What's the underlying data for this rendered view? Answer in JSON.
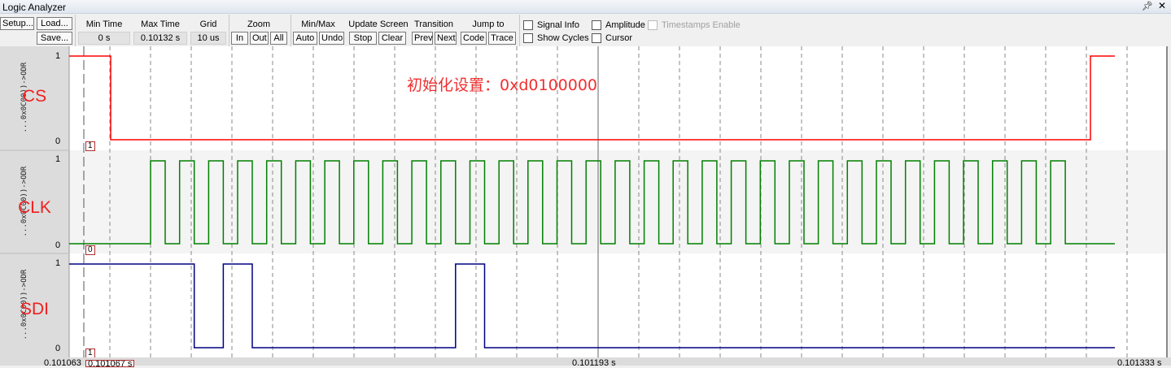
{
  "window": {
    "title": "Logic Analyzer",
    "pin_icon": "pin-icon",
    "close_icon": "close-icon"
  },
  "toolbar": {
    "setup": "Setup...",
    "load": "Load...",
    "save": "Save...",
    "min_time": {
      "label": "Min Time",
      "value": "0 s"
    },
    "max_time": {
      "label": "Max Time",
      "value": "0.10132 s"
    },
    "grid": {
      "label": "Grid",
      "value": "10 us"
    },
    "zoom": {
      "label": "Zoom",
      "in": "In",
      "out": "Out",
      "all": "All"
    },
    "minmax": {
      "label": "Min/Max",
      "auto": "Auto",
      "undo": "Undo"
    },
    "update": {
      "label": "Update Screen",
      "stop": "Stop",
      "clear": "Clear"
    },
    "transition": {
      "label": "Transition",
      "prev": "Prev",
      "next": "Next"
    },
    "jump": {
      "label": "Jump to",
      "code": "Code",
      "trace": "Trace"
    },
    "checks": {
      "signal_info": "Signal Info",
      "amplitude": "Amplitude",
      "timestamps": "Timestamps Enable",
      "show_cycles": "Show Cycles",
      "cursor": "Cursor"
    }
  },
  "signals": [
    {
      "name": "CS",
      "expr": "...0x0C00))->ODR",
      "high": "1",
      "low": "0",
      "marker": "1",
      "color": "#ff0000"
    },
    {
      "name": "CLK",
      "expr": "...0x0C00))->ODR",
      "high": "1",
      "low": "0",
      "marker": "0",
      "color": "#008000"
    },
    {
      "name": "SDI",
      "expr": "...0x0C00))->ODR",
      "high": "1",
      "low": "0",
      "marker": "1",
      "color": "#000080"
    }
  ],
  "annotation": "初始化设置：0xd0100000",
  "time_axis": {
    "start": "0.101063",
    "cursor": "0.101067 s",
    "middle": "0.101193 s",
    "end": "0.101333 s",
    "start_s": 0.101063,
    "end_s": 0.101333,
    "grid_us": 10
  },
  "cursor_s": 0.1010666,
  "waveform": {
    "cs_low_from_s": 0.1010732,
    "cs_high_at_s": 0.101314,
    "trace_end_s": 0.10132,
    "clk_first_rise_s": 0.101083,
    "clk_period_us": 7.136,
    "clk_high_us": 3.6,
    "clk_pulses": 32,
    "sdi_bits": [
      1,
      1,
      0,
      1,
      0,
      0,
      0,
      0,
      0,
      0,
      0,
      1,
      0,
      0,
      0,
      0,
      0,
      0,
      0,
      0,
      0,
      0,
      0,
      0,
      0,
      0,
      0,
      0,
      0,
      0,
      0,
      0
    ]
  }
}
